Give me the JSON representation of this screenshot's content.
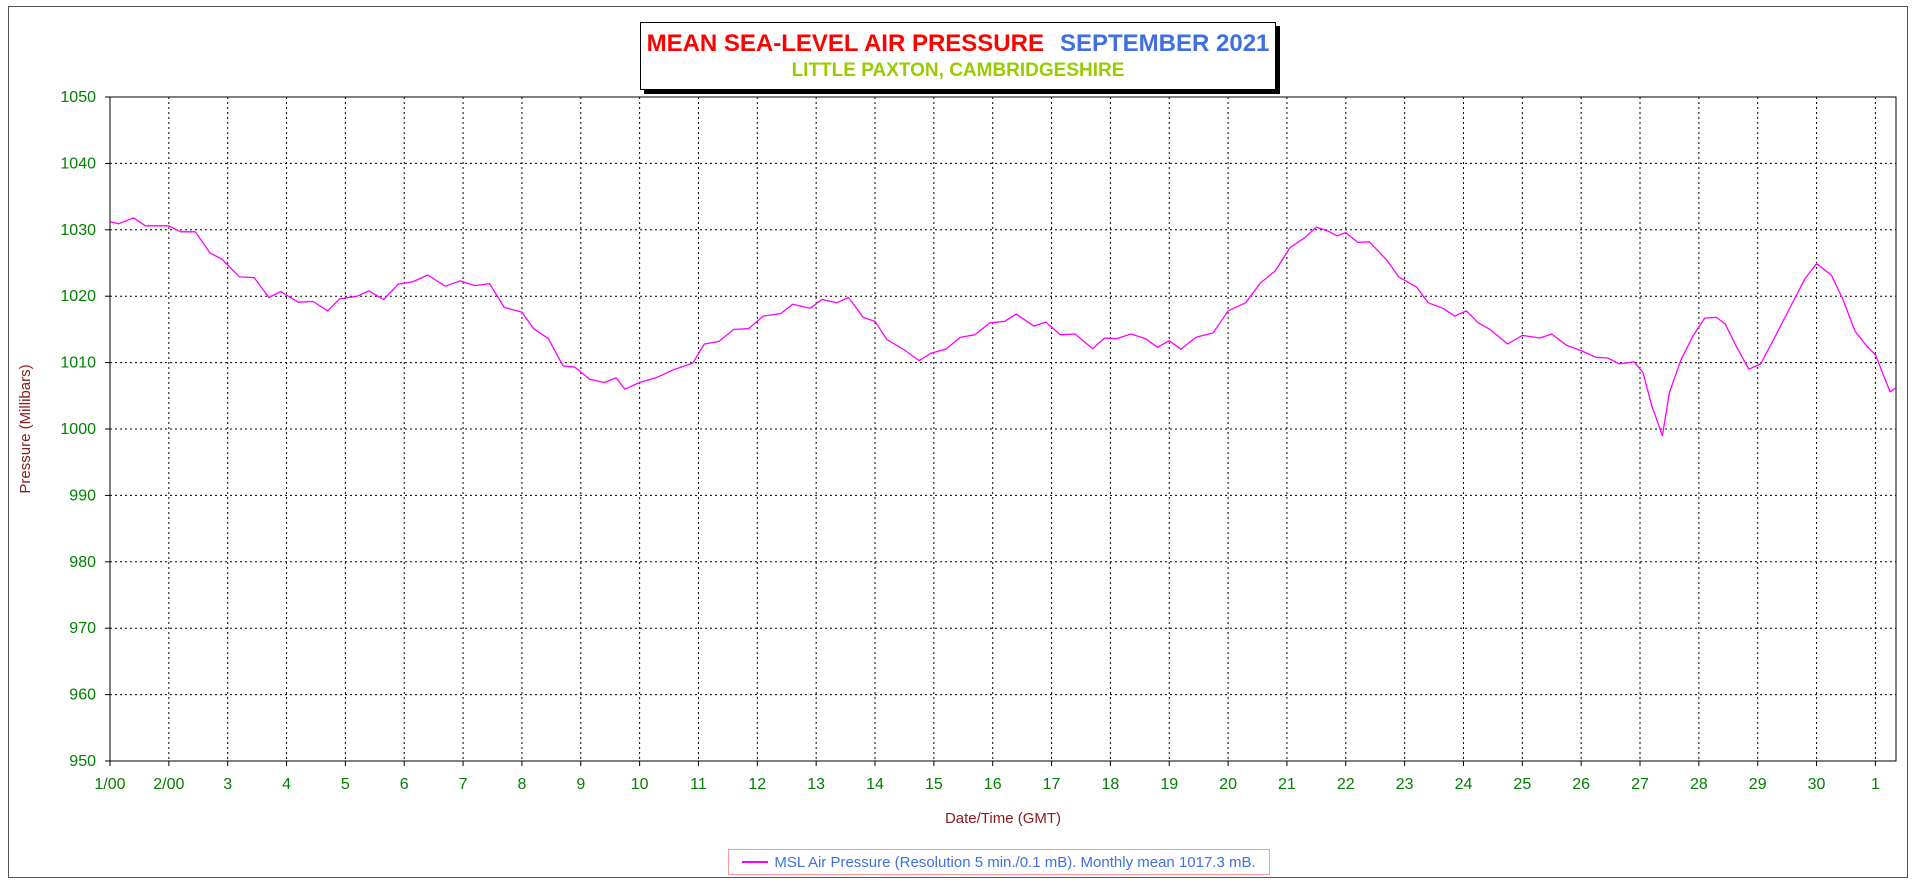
{
  "chart_data": {
    "type": "line",
    "title": "MEAN SEA-LEVEL AIR PRESSURE",
    "title_month": "SEPTEMBER 2021",
    "subtitle": "LITTLE PAXTON, CAMBRIDGESHIRE",
    "xlabel": "Date/Time (GMT)",
    "ylabel": "Pressure (Millibars)",
    "ylim": [
      950,
      1050
    ],
    "yticks": [
      950,
      960,
      970,
      980,
      990,
      1000,
      1010,
      1020,
      1030,
      1040,
      1050
    ],
    "xlim": [
      1,
      31.35
    ],
    "xticks": [
      {
        "day": 1,
        "label": "1/00"
      },
      {
        "day": 2,
        "label": "2/00"
      },
      {
        "day": 3,
        "label": "3"
      },
      {
        "day": 4,
        "label": "4"
      },
      {
        "day": 5,
        "label": "5"
      },
      {
        "day": 6,
        "label": "6"
      },
      {
        "day": 7,
        "label": "7"
      },
      {
        "day": 8,
        "label": "8"
      },
      {
        "day": 9,
        "label": "9"
      },
      {
        "day": 10,
        "label": "10"
      },
      {
        "day": 11,
        "label": "11"
      },
      {
        "day": 12,
        "label": "12"
      },
      {
        "day": 13,
        "label": "13"
      },
      {
        "day": 14,
        "label": "14"
      },
      {
        "day": 15,
        "label": "15"
      },
      {
        "day": 16,
        "label": "16"
      },
      {
        "day": 17,
        "label": "17"
      },
      {
        "day": 18,
        "label": "18"
      },
      {
        "day": 19,
        "label": "19"
      },
      {
        "day": 20,
        "label": "20"
      },
      {
        "day": 21,
        "label": "21"
      },
      {
        "day": 22,
        "label": "22"
      },
      {
        "day": 23,
        "label": "23"
      },
      {
        "day": 24,
        "label": "24"
      },
      {
        "day": 25,
        "label": "25"
      },
      {
        "day": 26,
        "label": "26"
      },
      {
        "day": 27,
        "label": "27"
      },
      {
        "day": 28,
        "label": "28"
      },
      {
        "day": 29,
        "label": "29"
      },
      {
        "day": 30,
        "label": "30"
      },
      {
        "day": 31,
        "label": "1"
      }
    ],
    "grid": true,
    "legend_position": "bottom",
    "series": [
      {
        "name": "MSL Air Pressure (Resolution 5 min./0.1 mB). Monthly mean 1017.3 mB.",
        "color": "#ff00ff",
        "points": [
          [
            1.0,
            1031.2
          ],
          [
            1.15,
            1030.9
          ],
          [
            1.4,
            1031.8
          ],
          [
            1.6,
            1030.6
          ],
          [
            2.0,
            1030.6
          ],
          [
            2.2,
            1029.7
          ],
          [
            2.45,
            1029.7
          ],
          [
            2.7,
            1026.5
          ],
          [
            2.9,
            1025.6
          ],
          [
            3.2,
            1022.9
          ],
          [
            3.45,
            1022.8
          ],
          [
            3.7,
            1019.8
          ],
          [
            3.9,
            1020.7
          ],
          [
            4.2,
            1019.1
          ],
          [
            4.45,
            1019.2
          ],
          [
            4.7,
            1017.8
          ],
          [
            4.9,
            1019.6
          ],
          [
            5.2,
            1020.0
          ],
          [
            5.4,
            1020.8
          ],
          [
            5.65,
            1019.5
          ],
          [
            5.9,
            1021.8
          ],
          [
            6.15,
            1022.2
          ],
          [
            6.4,
            1023.2
          ],
          [
            6.7,
            1021.5
          ],
          [
            6.95,
            1022.3
          ],
          [
            7.2,
            1021.6
          ],
          [
            7.45,
            1021.9
          ],
          [
            7.7,
            1018.3
          ],
          [
            8.0,
            1017.6
          ],
          [
            8.2,
            1015.1
          ],
          [
            8.45,
            1013.6
          ],
          [
            8.7,
            1009.5
          ],
          [
            8.9,
            1009.3
          ],
          [
            9.15,
            1007.5
          ],
          [
            9.4,
            1007.0
          ],
          [
            9.6,
            1007.7
          ],
          [
            9.75,
            1006.0
          ],
          [
            10.0,
            1007.0
          ],
          [
            10.3,
            1007.8
          ],
          [
            10.6,
            1009.0
          ],
          [
            10.9,
            1009.9
          ],
          [
            11.1,
            1012.8
          ],
          [
            11.35,
            1013.2
          ],
          [
            11.6,
            1015.0
          ],
          [
            11.85,
            1015.1
          ],
          [
            12.1,
            1017.0
          ],
          [
            12.4,
            1017.4
          ],
          [
            12.6,
            1018.8
          ],
          [
            12.9,
            1018.2
          ],
          [
            13.1,
            1019.5
          ],
          [
            13.35,
            1019.0
          ],
          [
            13.55,
            1019.8
          ],
          [
            13.8,
            1016.8
          ],
          [
            14.0,
            1016.2
          ],
          [
            14.2,
            1013.5
          ],
          [
            14.5,
            1011.9
          ],
          [
            14.75,
            1010.3
          ],
          [
            14.95,
            1011.4
          ],
          [
            15.2,
            1012.0
          ],
          [
            15.45,
            1013.8
          ],
          [
            15.7,
            1014.2
          ],
          [
            15.95,
            1016.0
          ],
          [
            16.2,
            1016.2
          ],
          [
            16.4,
            1017.3
          ],
          [
            16.7,
            1015.5
          ],
          [
            16.9,
            1016.1
          ],
          [
            17.15,
            1014.2
          ],
          [
            17.4,
            1014.3
          ],
          [
            17.7,
            1012.1
          ],
          [
            17.9,
            1013.7
          ],
          [
            18.1,
            1013.6
          ],
          [
            18.35,
            1014.3
          ],
          [
            18.6,
            1013.6
          ],
          [
            18.8,
            1012.3
          ],
          [
            19.0,
            1013.3
          ],
          [
            19.2,
            1012.0
          ],
          [
            19.45,
            1013.8
          ],
          [
            19.75,
            1014.5
          ],
          [
            20.0,
            1017.8
          ],
          [
            20.3,
            1019.0
          ],
          [
            20.55,
            1022.0
          ],
          [
            20.8,
            1023.8
          ],
          [
            21.05,
            1027.3
          ],
          [
            21.3,
            1028.8
          ],
          [
            21.5,
            1030.4
          ],
          [
            21.7,
            1029.8
          ],
          [
            21.85,
            1029.1
          ],
          [
            22.0,
            1029.6
          ],
          [
            22.2,
            1028.1
          ],
          [
            22.4,
            1028.2
          ],
          [
            22.7,
            1025.4
          ],
          [
            22.9,
            1022.9
          ],
          [
            23.2,
            1021.4
          ],
          [
            23.4,
            1019.0
          ],
          [
            23.65,
            1018.2
          ],
          [
            23.85,
            1017.0
          ],
          [
            24.05,
            1017.8
          ],
          [
            24.25,
            1016.0
          ],
          [
            24.45,
            1015.0
          ],
          [
            24.75,
            1012.8
          ],
          [
            25.0,
            1014.1
          ],
          [
            25.3,
            1013.7
          ],
          [
            25.5,
            1014.3
          ],
          [
            25.75,
            1012.6
          ],
          [
            26.0,
            1011.8
          ],
          [
            26.25,
            1010.8
          ],
          [
            26.45,
            1010.7
          ],
          [
            26.65,
            1009.8
          ],
          [
            26.9,
            1010.1
          ],
          [
            27.05,
            1008.5
          ],
          [
            27.2,
            1003.5
          ],
          [
            27.38,
            999.0
          ],
          [
            27.5,
            1005.5
          ],
          [
            27.7,
            1010.5
          ],
          [
            27.9,
            1014.0
          ],
          [
            28.1,
            1016.7
          ],
          [
            28.3,
            1016.8
          ],
          [
            28.45,
            1015.8
          ],
          [
            28.65,
            1012.2
          ],
          [
            28.85,
            1009.0
          ],
          [
            29.05,
            1009.8
          ],
          [
            29.3,
            1014.0
          ],
          [
            29.55,
            1018.3
          ],
          [
            29.8,
            1022.6
          ],
          [
            30.0,
            1024.9
          ],
          [
            30.25,
            1023.2
          ],
          [
            30.45,
            1019.5
          ],
          [
            30.65,
            1014.8
          ],
          [
            30.85,
            1012.5
          ],
          [
            31.0,
            1011.2
          ],
          [
            31.15,
            1007.8
          ],
          [
            31.25,
            1005.6
          ],
          [
            31.35,
            1006.2
          ]
        ]
      }
    ]
  }
}
